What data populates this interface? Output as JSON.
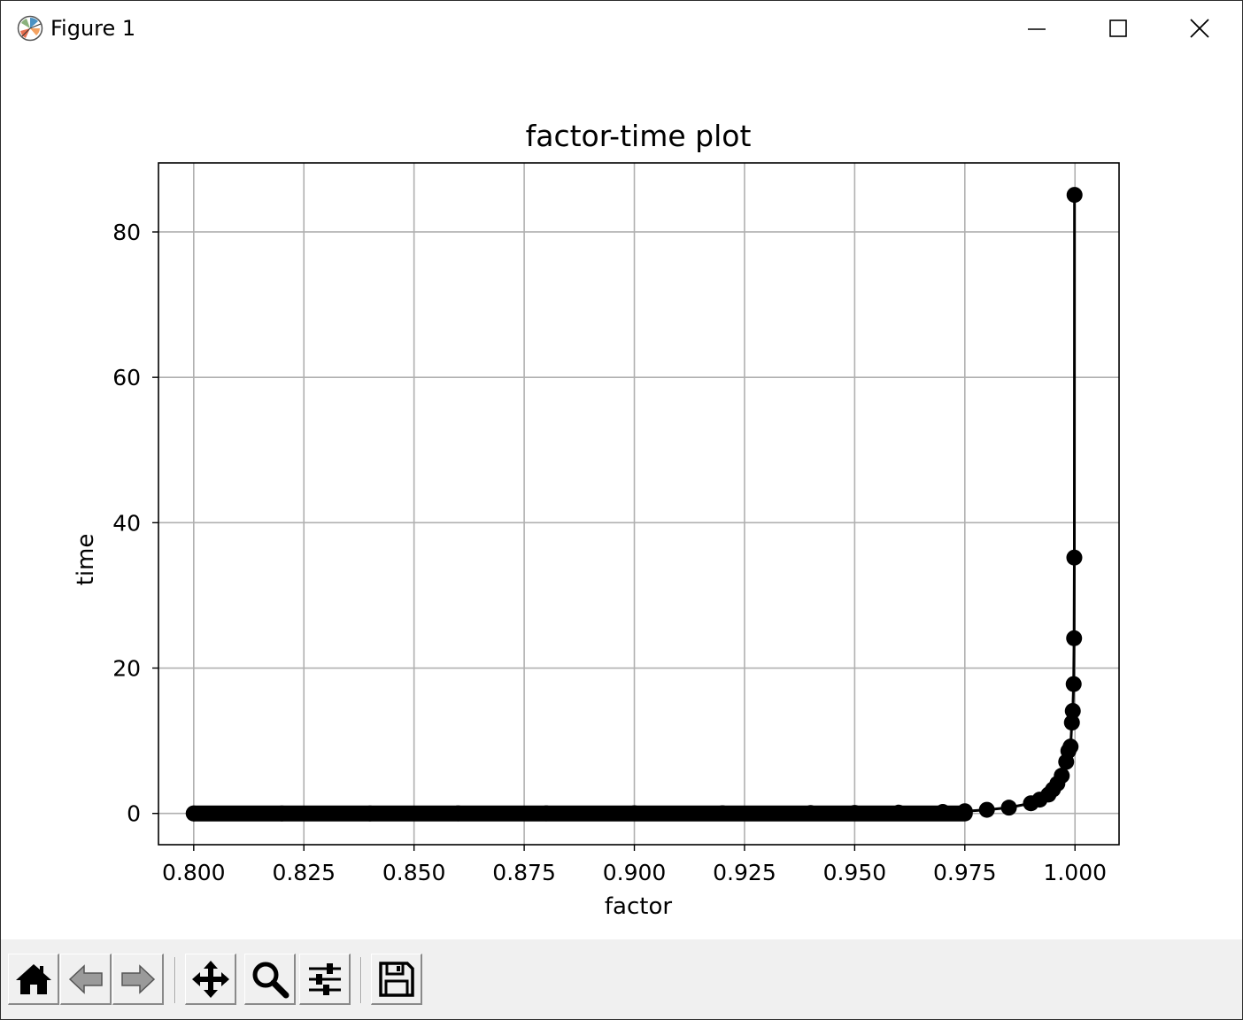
{
  "window": {
    "title": "Figure 1",
    "controls": {
      "minimize": "minimize",
      "maximize": "maximize",
      "close": "close"
    }
  },
  "toolbar": {
    "buttons": [
      {
        "name": "home",
        "icon": "home-icon"
      },
      {
        "name": "back",
        "icon": "arrow-left-icon"
      },
      {
        "name": "forward",
        "icon": "arrow-right-icon"
      },
      {
        "name": "pan",
        "icon": "move-icon"
      },
      {
        "name": "zoom",
        "icon": "magnifier-icon"
      },
      {
        "name": "configure-subplots",
        "icon": "sliders-icon"
      },
      {
        "name": "save",
        "icon": "floppy-disk-icon"
      }
    ]
  },
  "chart_data": {
    "type": "line",
    "title": "factor-time plot",
    "xlabel": "factor",
    "ylabel": "time",
    "xlim": [
      0.792,
      1.01
    ],
    "ylim": [
      -4.3,
      89.5
    ],
    "xticks": [
      0.8,
      0.825,
      0.85,
      0.875,
      0.9,
      0.925,
      0.95,
      0.975,
      1.0
    ],
    "xtick_labels": [
      "0.800",
      "0.825",
      "0.850",
      "0.875",
      "0.900",
      "0.925",
      "0.950",
      "0.975",
      "1.000"
    ],
    "yticks": [
      0,
      20,
      40,
      60,
      80
    ],
    "ytick_labels": [
      "0",
      "20",
      "40",
      "60",
      "80"
    ],
    "grid": true,
    "line_color": "#000000",
    "marker": "circle",
    "series": [
      {
        "x": [
          0.8,
          0.82,
          0.84,
          0.86,
          0.88,
          0.9,
          0.92,
          0.94,
          0.95,
          0.96,
          0.97,
          0.975,
          0.98,
          0.985,
          0.99,
          0.992,
          0.994,
          0.995,
          0.996,
          0.997,
          0.998,
          0.9985,
          0.999,
          0.9993,
          0.9995,
          0.9997,
          0.9998,
          0.99985,
          0.9999
        ],
        "y": [
          0.0,
          0.0,
          0.0,
          0.01,
          0.01,
          0.02,
          0.03,
          0.05,
          0.07,
          0.11,
          0.2,
          0.3,
          0.5,
          0.8,
          1.4,
          1.9,
          2.6,
          3.3,
          4.1,
          5.2,
          7.1,
          8.6,
          9.2,
          12.5,
          14.1,
          17.8,
          24.1,
          35.2,
          85.1
        ]
      }
    ]
  }
}
